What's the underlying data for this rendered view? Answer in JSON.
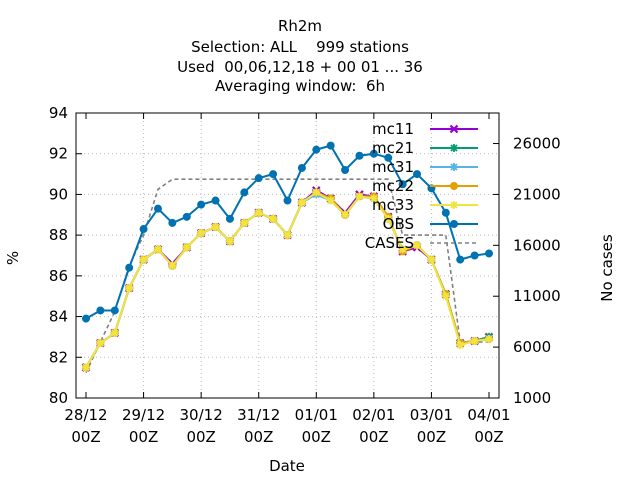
{
  "header": {
    "title": "Rh2m",
    "line2": "Selection: ALL    999 stations",
    "line3": "Used  00,06,12,18 + 00 01 ... 36",
    "line4": "Averaging window:  6h"
  },
  "chart_data": {
    "type": "line",
    "title": "Rh2m",
    "xlabel": "Date",
    "ylabel": "%",
    "y2label": "No cases",
    "ylim": [
      80,
      94
    ],
    "y2lim": [
      1000,
      29000
    ],
    "grid": true,
    "legend_position": "top-right",
    "x_tick_labels": [
      {
        "line1": "28/12",
        "line2": "00Z"
      },
      {
        "line1": "29/12",
        "line2": "00Z"
      },
      {
        "line1": "30/12",
        "line2": "00Z"
      },
      {
        "line1": "31/12",
        "line2": "00Z"
      },
      {
        "line1": "01/01",
        "line2": "00Z"
      },
      {
        "line1": "02/01",
        "line2": "00Z"
      },
      {
        "line1": "03/01",
        "line2": "00Z"
      },
      {
        "line1": "04/01",
        "line2": "00Z"
      }
    ],
    "y_ticks": [
      "80",
      "82",
      "84",
      "86",
      "88",
      "90",
      "92",
      "94"
    ],
    "y2_ticks": [
      "1000",
      "6000",
      "11000",
      "16000",
      "21000",
      "26000"
    ],
    "x_hours": [
      0,
      6,
      12,
      18,
      24,
      30,
      36,
      42,
      48,
      54,
      60,
      66,
      72,
      78,
      84,
      90,
      96,
      102,
      108,
      114,
      120,
      126,
      132,
      138,
      144,
      150,
      156,
      162,
      168
    ],
    "series": [
      {
        "name": "mc11",
        "color": "#9400d3",
        "marker": "cross",
        "values": [
          81.5,
          82.7,
          83.2,
          85.4,
          86.8,
          87.3,
          86.6,
          87.4,
          88.1,
          88.4,
          87.7,
          88.6,
          89.1,
          88.8,
          88.0,
          89.6,
          90.2,
          89.8,
          89.1,
          90.0,
          89.9,
          88.9,
          87.2,
          87.4,
          86.8,
          85.1,
          82.7,
          82.8,
          83.0
        ]
      },
      {
        "name": "mc21",
        "color": "#009e73",
        "marker": "star",
        "values": [
          81.5,
          82.7,
          83.2,
          85.4,
          86.8,
          87.3,
          86.5,
          87.4,
          88.1,
          88.4,
          87.7,
          88.6,
          89.1,
          88.8,
          88.0,
          89.6,
          90.1,
          89.8,
          89.0,
          89.9,
          89.8,
          88.8,
          87.3,
          87.5,
          86.8,
          85.1,
          82.7,
          82.8,
          83.0
        ]
      },
      {
        "name": "mc31",
        "color": "#56b4e9",
        "marker": "star",
        "values": [
          81.5,
          82.7,
          83.2,
          85.4,
          86.8,
          87.3,
          86.5,
          87.4,
          88.1,
          88.4,
          87.7,
          88.6,
          89.1,
          88.8,
          88.0,
          89.6,
          90.0,
          89.7,
          89.0,
          89.9,
          89.8,
          88.8,
          87.3,
          87.5,
          86.8,
          85.1,
          82.7,
          82.8,
          82.9
        ]
      },
      {
        "name": "mc22",
        "color": "#e69f00",
        "marker": "circle",
        "values": [
          81.5,
          82.7,
          83.2,
          85.4,
          86.8,
          87.3,
          86.5,
          87.4,
          88.1,
          88.4,
          87.7,
          88.6,
          89.1,
          88.8,
          88.0,
          89.6,
          90.1,
          89.8,
          89.0,
          89.9,
          89.9,
          88.9,
          87.2,
          87.5,
          86.8,
          85.1,
          82.7,
          82.8,
          82.9
        ]
      },
      {
        "name": "mc33",
        "color": "#f0e442",
        "marker": "star",
        "values": [
          81.5,
          82.7,
          83.2,
          85.4,
          86.8,
          87.3,
          86.5,
          87.4,
          88.1,
          88.4,
          87.7,
          88.6,
          89.1,
          88.8,
          88.0,
          89.6,
          90.1,
          89.7,
          89.0,
          89.9,
          89.8,
          88.8,
          87.3,
          87.5,
          86.8,
          85.0,
          82.6,
          82.8,
          82.9
        ]
      },
      {
        "name": "OBS",
        "color": "#0072b2",
        "marker": "circle",
        "values": [
          83.9,
          84.3,
          84.3,
          86.4,
          88.3,
          89.3,
          88.6,
          88.9,
          89.5,
          89.7,
          88.8,
          90.1,
          90.8,
          91.0,
          89.7,
          91.3,
          92.2,
          92.4,
          91.2,
          91.9,
          92.0,
          91.8,
          90.5,
          91.0,
          90.3,
          89.1,
          86.8,
          87.0,
          87.1
        ]
      }
    ],
    "cases": {
      "name": "CASES",
      "color": "#808080",
      "hours": [
        0,
        6,
        12,
        18,
        24,
        30,
        36,
        42,
        48,
        54,
        60,
        66,
        72,
        78,
        84,
        90,
        96,
        102,
        108,
        114,
        120,
        126,
        132,
        138,
        144,
        150,
        156,
        162,
        168
      ],
      "values": [
        3500,
        6500,
        9500,
        14000,
        17000,
        21500,
        22500,
        22500,
        22500,
        22500,
        22500,
        22500,
        22500,
        22500,
        22500,
        22500,
        22500,
        22500,
        22500,
        22500,
        22500,
        22500,
        17000,
        17000,
        17000,
        17000,
        6500,
        6500,
        6500
      ]
    }
  }
}
